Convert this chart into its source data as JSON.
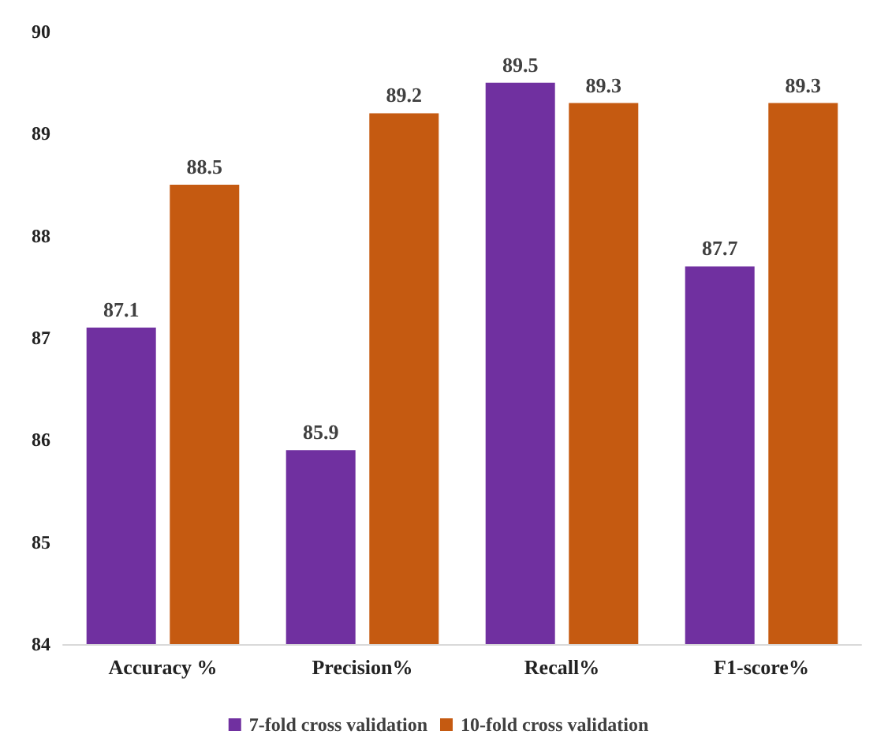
{
  "chart_data": {
    "type": "bar",
    "categories": [
      "Accuracy %",
      "Precision%",
      "Recall%",
      "F1-score%"
    ],
    "series": [
      {
        "name": "7-fold cross validation",
        "color": "#7030a0",
        "values": [
          87.1,
          85.9,
          89.5,
          87.7
        ]
      },
      {
        "name": "10-fold cross validation",
        "color": "#c55a11",
        "values": [
          88.5,
          89.2,
          89.3,
          89.3
        ]
      }
    ],
    "ylim": [
      84,
      90
    ],
    "yticks": [
      84,
      85,
      86,
      87,
      88,
      89,
      90
    ],
    "grid": false,
    "legend": "bottom",
    "data_labels": true
  }
}
